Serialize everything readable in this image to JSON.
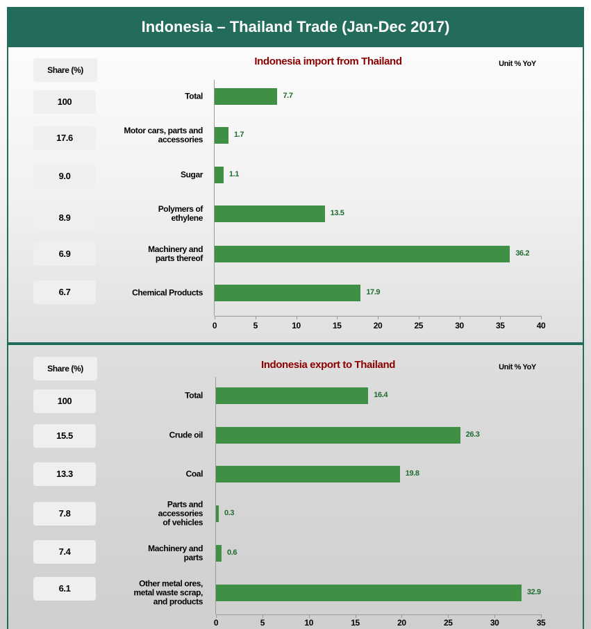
{
  "title": "Indonesia – Thailand Trade (Jan-Dec 2017)",
  "chart_data": [
    {
      "type": "bar",
      "orientation": "horizontal",
      "title": "Indonesia import from Thailand",
      "unit": "Unit % YoY",
      "share_header": "Share (%)",
      "shares": [
        "100",
        "17.6",
        "9.0",
        "8.9",
        "6.9",
        "6.7"
      ],
      "categories": [
        "Total",
        "Motor cars, parts and\naccessories",
        "Sugar",
        "Polymers of\nethylene",
        "Machinery and\nparts thereof",
        "Chemical Products"
      ],
      "values": [
        7.7,
        1.7,
        1.1,
        13.5,
        36.2,
        17.9
      ],
      "color": "#3f8f45",
      "xlim": [
        0,
        40
      ],
      "xticks": [
        0,
        5,
        10,
        15,
        20,
        25,
        30,
        35,
        40
      ]
    },
    {
      "type": "bar",
      "orientation": "horizontal",
      "title": "Indonesia export to Thailand",
      "unit": "Unit % YoY",
      "share_header": "Share (%)",
      "shares": [
        "100",
        "15.5",
        "13.3",
        "7.8",
        "7.4",
        "6.1"
      ],
      "categories": [
        "Total",
        "Crude oil",
        "Coal",
        "Parts and\naccessories\nof vehicles",
        "Machinery and\nparts",
        "Other metal ores,\nmetal waste scrap,\nand products"
      ],
      "values": [
        16.4,
        26.3,
        19.8,
        0.3,
        0.6,
        32.9
      ],
      "color": "#3f8f45",
      "xlim": [
        0,
        35
      ],
      "xticks": [
        0,
        5,
        10,
        15,
        20,
        25,
        30,
        35
      ]
    }
  ]
}
